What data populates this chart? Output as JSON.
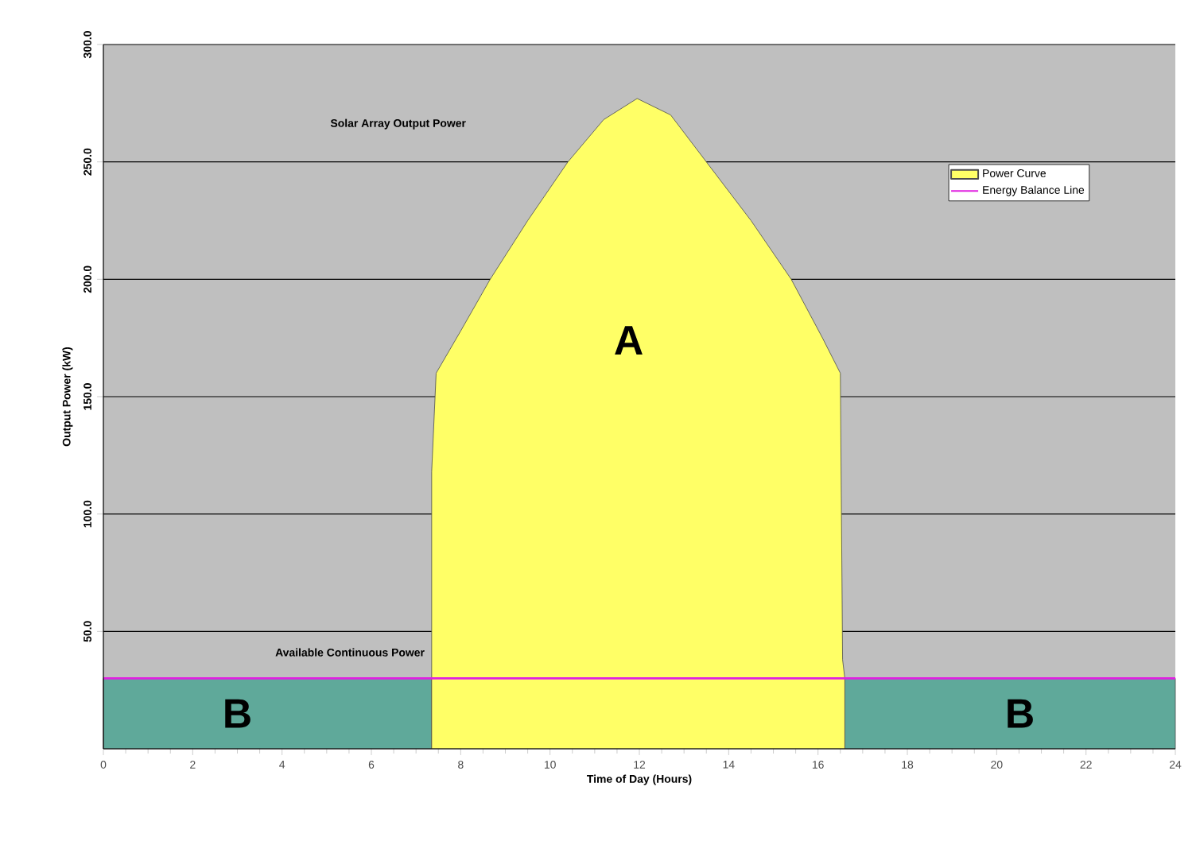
{
  "chart_data": {
    "type": "area",
    "xlabel": "Time of Day (Hours)",
    "ylabel": "Output Power (kW)",
    "xlim": [
      0,
      24
    ],
    "xticks": [
      0,
      2,
      4,
      6,
      8,
      10,
      12,
      14,
      16,
      18,
      20,
      22,
      24
    ],
    "ylim": [
      0,
      300
    ],
    "yticks": [
      {
        "value": 50,
        "label": "50.0"
      },
      {
        "value": 100,
        "label": "100.0"
      },
      {
        "value": 150,
        "label": "150.0"
      },
      {
        "value": 200,
        "label": "200.0"
      },
      {
        "value": 250,
        "label": "250.0"
      },
      {
        "value": 300,
        "label": "300.0"
      }
    ],
    "grid": "y",
    "legend": "top right",
    "series": [
      {
        "color": "#5fa99a",
        "x": [
          0,
          7.35
        ],
        "values": [
          30,
          30
        ]
      },
      {
        "color": "#5fa99a",
        "x": [
          16.6,
          24
        ],
        "values": [
          30,
          30
        ]
      },
      {
        "name": "Power Curve",
        "color": "#ffff66",
        "x": [
          7.35,
          7.35,
          7.45,
          8.0,
          8.66,
          9.5,
          10.4,
          11.2,
          11.95,
          12.7,
          13.5,
          14.5,
          15.4,
          16.1,
          16.5,
          16.55,
          16.6
        ],
        "values": [
          0,
          118,
          160,
          178,
          200,
          225,
          250,
          268,
          277,
          270,
          250,
          225,
          200,
          175,
          160,
          38,
          30
        ]
      },
      {
        "type": "line",
        "name": "Energy Balance Line",
        "color": "#e020e0",
        "x": [
          0,
          24
        ],
        "values": [
          30,
          30
        ]
      }
    ],
    "annotations": [
      "Solar Array Output Power",
      "A",
      "Available Continuous Power",
      "B",
      "B"
    ]
  }
}
